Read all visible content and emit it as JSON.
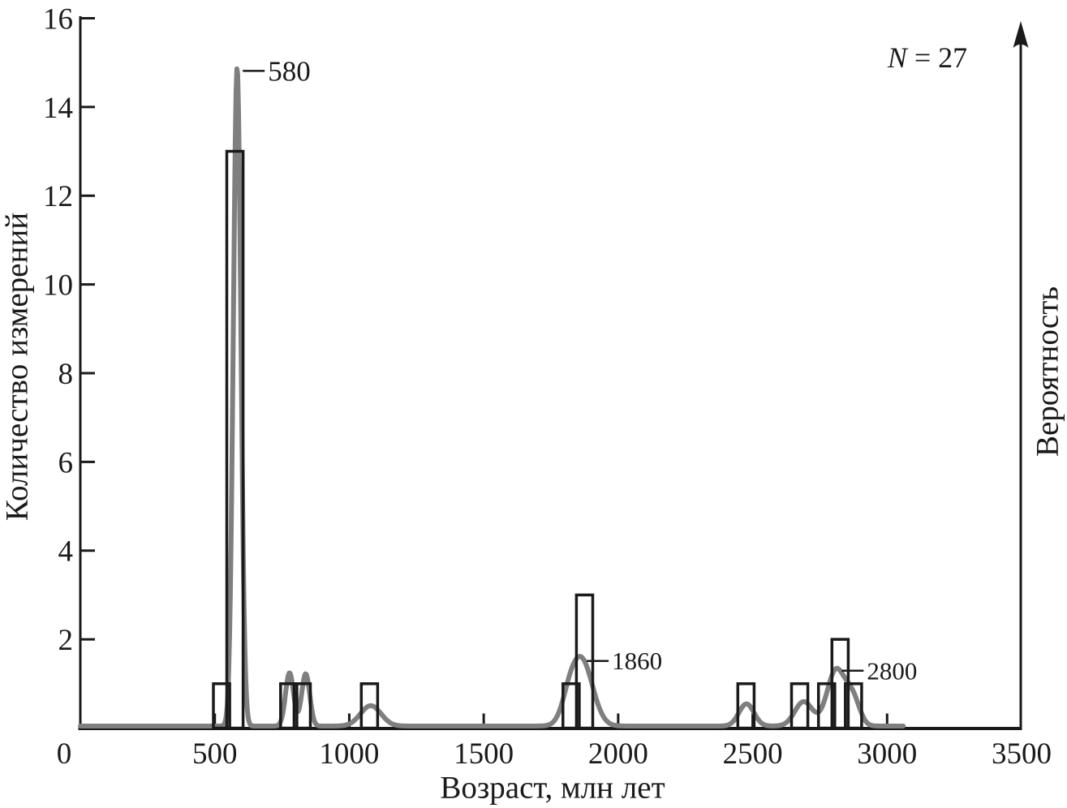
{
  "chart_data": {
    "type": "bar",
    "subtype": "histogram_with_probability_curve",
    "xlabel": "Возраст, млн лет",
    "ylabel_left": "Количество измерений",
    "ylabel_right": "Вероятность",
    "n_label": {
      "variable": "N",
      "rest": " = 27"
    },
    "xlim": [
      0,
      3500
    ],
    "ylim": [
      0,
      16
    ],
    "x_ticks": [
      0,
      500,
      1000,
      1500,
      2000,
      2500,
      3000,
      3500
    ],
    "y_ticks": [
      2,
      4,
      6,
      8,
      10,
      12,
      14,
      16
    ],
    "grid": false,
    "bin_width": 50,
    "bars": [
      {
        "start": 500,
        "count": 1
      },
      {
        "start": 550,
        "count": 13
      },
      {
        "start": 750,
        "count": 1
      },
      {
        "start": 800,
        "count": 1
      },
      {
        "start": 1050,
        "count": 1
      },
      {
        "start": 1800,
        "count": 1
      },
      {
        "start": 1850,
        "count": 3
      },
      {
        "start": 2450,
        "count": 1
      },
      {
        "start": 2650,
        "count": 1
      },
      {
        "start": 2750,
        "count": 1
      },
      {
        "start": 2800,
        "count": 2
      },
      {
        "start": 2850,
        "count": 1
      }
    ],
    "curve_components": [
      {
        "center": 583,
        "amp": 14.85,
        "sigma": 14
      },
      {
        "center": 778,
        "amp": 1.2,
        "sigma": 15
      },
      {
        "center": 838,
        "amp": 1.18,
        "sigma": 15
      },
      {
        "center": 1080,
        "amp": 0.46,
        "sigma": 38
      },
      {
        "center": 1815,
        "amp": 0.25,
        "sigma": 25
      },
      {
        "center": 1862,
        "amp": 1.52,
        "sigma": 42
      },
      {
        "center": 2477,
        "amp": 0.5,
        "sigma": 28
      },
      {
        "center": 2690,
        "amp": 0.55,
        "sigma": 33
      },
      {
        "center": 2810,
        "amp": 1.26,
        "sigma": 33
      },
      {
        "center": 2872,
        "amp": 0.6,
        "sigma": 26
      }
    ],
    "curve_x_range": [
      0,
      3060
    ],
    "peak_annotations": [
      {
        "label": "580",
        "age": 583,
        "value": 14.85,
        "major": true
      },
      {
        "label": "1860",
        "age": 1862,
        "value": 1.55,
        "major": false
      },
      {
        "label": "2800",
        "age": 2810,
        "value": 1.33,
        "major": false
      }
    ],
    "colors": {
      "curve": "#7f7f7f",
      "axis": "#1a1a1a",
      "bar_stroke": "#1a1a1a",
      "text": "#1a1a1a"
    }
  }
}
